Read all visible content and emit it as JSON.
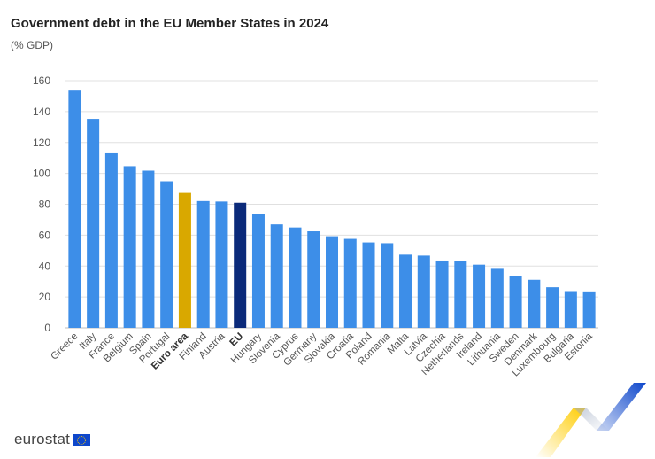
{
  "title": "Government debt in the EU Member States in 2024",
  "subtitle": "(% GDP)",
  "logo_text": "eurostat",
  "colors": {
    "member": "#3D8EE8",
    "euro_area": "#D9A800",
    "eu": "#0B2A7A",
    "grid": "#E0E0E0",
    "axis_text": "#555555"
  },
  "chart_data": {
    "type": "bar",
    "title": "Government debt in the EU Member States in 2024",
    "subtitle": "(% GDP)",
    "xlabel": "",
    "ylabel": "",
    "ylim": [
      0,
      160
    ],
    "yticks": [
      0,
      20,
      40,
      60,
      80,
      100,
      120,
      140,
      160
    ],
    "grid": true,
    "categories": [
      "Greece",
      "Italy",
      "France",
      "Belgium",
      "Spain",
      "Portugal",
      "Euro area",
      "Finland",
      "Austria",
      "EU",
      "Hungary",
      "Slovenia",
      "Cyprus",
      "Germany",
      "Slovakia",
      "Croatia",
      "Poland",
      "Romania",
      "Malta",
      "Latvia",
      "Czechia",
      "Netherlands",
      "Ireland",
      "Lithuania",
      "Sweden",
      "Denmark",
      "Luxembourg",
      "Bulgaria",
      "Estonia"
    ],
    "values": [
      153.6,
      135.3,
      113.0,
      104.7,
      101.8,
      94.9,
      87.4,
      82.1,
      81.8,
      81.0,
      73.5,
      67.0,
      65.0,
      62.5,
      59.3,
      57.6,
      55.3,
      54.8,
      47.4,
      46.8,
      43.6,
      43.3,
      40.9,
      38.2,
      33.5,
      31.1,
      26.3,
      23.8,
      23.6
    ],
    "highlight": {
      "Euro area": "euro_area",
      "EU": "eu"
    }
  }
}
